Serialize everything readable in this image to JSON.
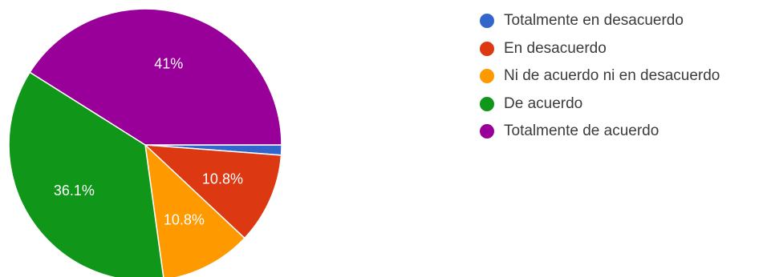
{
  "chart_data": {
    "type": "pie",
    "categories": [
      "Totalmente en desacuerdo",
      "En desacuerdo",
      "Ni de acuerdo ni en desacuerdo",
      "De acuerdo",
      "Totalmente de acuerdo"
    ],
    "values": [
      1.2,
      10.8,
      10.8,
      36.1,
      41
    ],
    "data_labels": [
      "",
      "10.8%",
      "10.8%",
      "36.1%",
      "41%"
    ],
    "colors": [
      "#3366cc",
      "#dc3912",
      "#ff9900",
      "#109618",
      "#990099"
    ],
    "legend": "right",
    "title": ""
  }
}
